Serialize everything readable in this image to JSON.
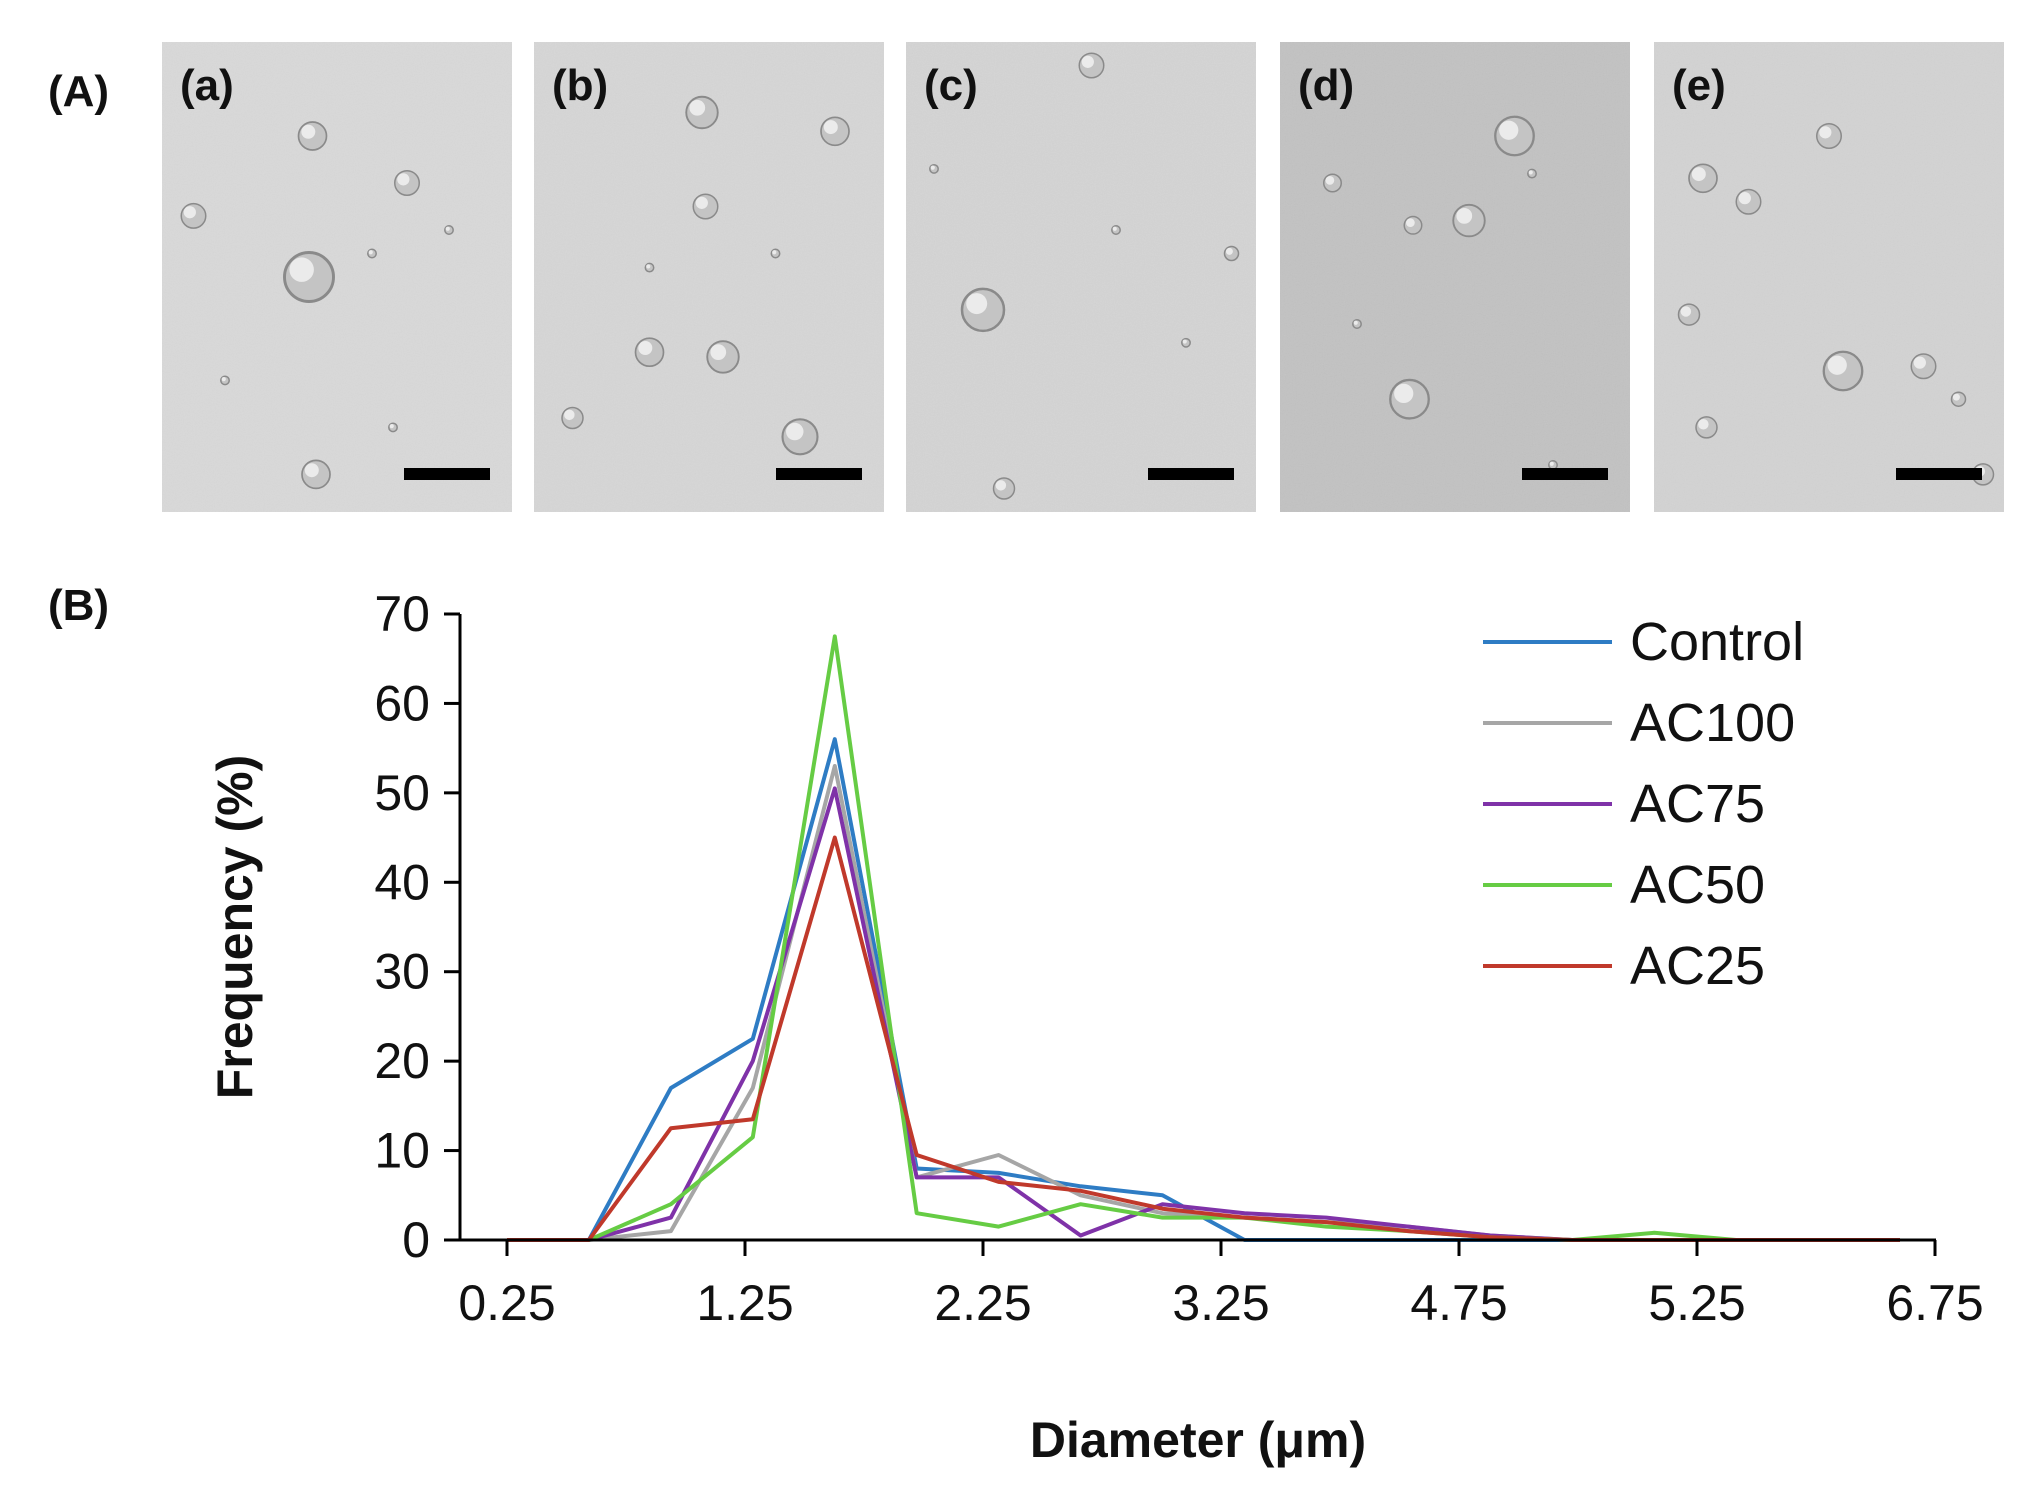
{
  "panel_a": {
    "label": "(A)",
    "images": [
      {
        "label": "(a)",
        "bg": "#d9d9d9"
      },
      {
        "label": "(b)",
        "bg": "#d6d6d6"
      },
      {
        "label": "(c)",
        "bg": "#d4d4d4"
      },
      {
        "label": "(d)",
        "bg": "#c2c2c2"
      },
      {
        "label": "(e)",
        "bg": "#d3d3d3"
      }
    ]
  },
  "panel_b": {
    "label": "(B)"
  },
  "chart_data": {
    "type": "line",
    "title": "",
    "xlabel": "Diameter (μm)",
    "ylabel": "Frequency (%)",
    "x": [
      0.25,
      0.625,
      1.0,
      1.375,
      1.75,
      2.125,
      2.5,
      2.875,
      3.25,
      3.625,
      4.0,
      4.375,
      4.75,
      5.125,
      5.5,
      5.875,
      6.25,
      6.625
    ],
    "xlim": [
      0.25,
      6.75
    ],
    "ylim": [
      0,
      70
    ],
    "xticks": [
      "0.25",
      "1.25",
      "2.25",
      "3.25",
      "4.75",
      "5.25",
      "6.75"
    ],
    "yticks": [
      "0",
      "10",
      "20",
      "30",
      "40",
      "50",
      "60",
      "70"
    ],
    "legend_position": "top-right",
    "series": [
      {
        "name": "Control",
        "color": "#2e7cc4",
        "values": [
          0,
          0,
          17,
          22.5,
          56,
          8,
          7.5,
          6,
          5,
          0,
          0,
          0,
          0,
          0,
          0,
          0,
          0,
          0
        ]
      },
      {
        "name": "AC100",
        "color": "#a6a6a6",
        "values": [
          0,
          0,
          1,
          17,
          53,
          7,
          9.5,
          5,
          3,
          2.5,
          2,
          1.5,
          0.5,
          0,
          0,
          0,
          0,
          0
        ]
      },
      {
        "name": "AC75",
        "color": "#7f32a8",
        "values": [
          0,
          0,
          2.5,
          20,
          50.5,
          7,
          7,
          0.5,
          4,
          3,
          2.5,
          1.5,
          0.5,
          0,
          0,
          0,
          0,
          0
        ]
      },
      {
        "name": "AC50",
        "color": "#66cc44",
        "values": [
          0,
          0,
          4,
          11.5,
          67.5,
          3,
          1.5,
          4,
          2.5,
          2.5,
          1.5,
          1,
          0.3,
          0,
          0.8,
          0,
          0,
          0
        ]
      },
      {
        "name": "AC25",
        "color": "#c0392b",
        "values": [
          0,
          0,
          12.5,
          13.5,
          45,
          9.5,
          6.5,
          5.5,
          3.5,
          2.5,
          2,
          1,
          0.3,
          0,
          0,
          0,
          0,
          0
        ]
      }
    ]
  }
}
